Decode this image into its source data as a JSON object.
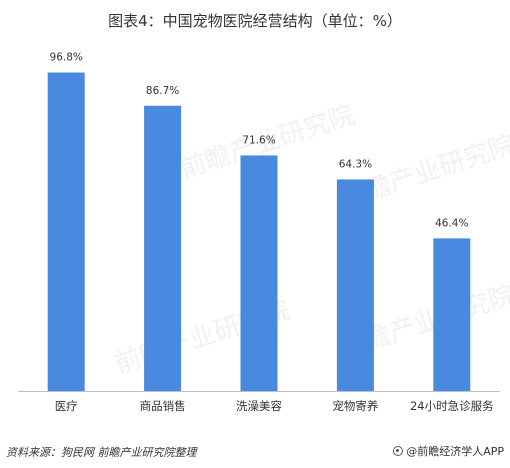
{
  "page": {
    "title": "图表4：中国宠物医院经营结构（单位：%）",
    "source": "资料来源：狗民网 前瞻产业研究院整理",
    "brand": "@前瞻经济学人APP",
    "watermark": "前瞻产业研究院"
  },
  "colors": {
    "bar": "#4a89e0",
    "axis": "#bfbfbf"
  },
  "chart_data": {
    "type": "bar",
    "title": "图表4：中国宠物医院经营结构（单位：%）",
    "categories": [
      "医疗",
      "商品销售",
      "洗澡美容",
      "宠物寄养",
      "24小时急诊服务"
    ],
    "values": [
      96.8,
      86.7,
      71.6,
      64.3,
      46.4
    ],
    "data_labels": [
      "96.8%",
      "86.7%",
      "71.6%",
      "64.3%",
      "46.4%"
    ],
    "unit": "%",
    "ylim": [
      0,
      100
    ],
    "grid": false,
    "legend": "none"
  }
}
